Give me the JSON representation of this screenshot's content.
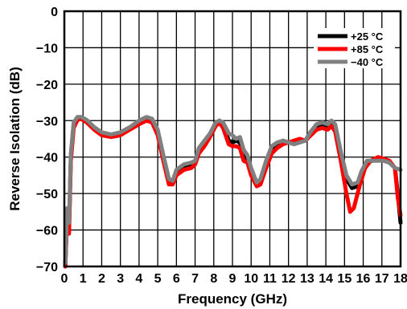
{
  "chart_data": {
    "type": "line",
    "title": "",
    "xlabel": "Frequency (GHz)",
    "ylabel": "Reverse Isolation (dB)",
    "xlim": [
      0,
      18
    ],
    "ylim": [
      -70,
      0
    ],
    "xticks": [
      0,
      1,
      2,
      3,
      4,
      5,
      6,
      7,
      8,
      9,
      10,
      11,
      12,
      13,
      14,
      15,
      16,
      17,
      18
    ],
    "yticks": [
      0,
      -10,
      -20,
      -30,
      -40,
      -50,
      -60,
      -70
    ],
    "grid": true,
    "legend_position": "top-right",
    "series": [
      {
        "name": "+25 °C",
        "color": "#000000",
        "points": [
          [
            0.05,
            -70
          ],
          [
            0.15,
            -55
          ],
          [
            0.25,
            -60
          ],
          [
            0.35,
            -40
          ],
          [
            0.5,
            -31
          ],
          [
            0.7,
            -29.5
          ],
          [
            0.9,
            -29.2
          ],
          [
            1.2,
            -30
          ],
          [
            1.6,
            -32
          ],
          [
            2,
            -33.5
          ],
          [
            2.5,
            -34
          ],
          [
            3,
            -33.5
          ],
          [
            3.5,
            -32
          ],
          [
            4,
            -30.5
          ],
          [
            4.4,
            -29.5
          ],
          [
            4.7,
            -30
          ],
          [
            5,
            -33
          ],
          [
            5.3,
            -40
          ],
          [
            5.6,
            -46.5
          ],
          [
            5.8,
            -47
          ],
          [
            6,
            -44
          ],
          [
            6.4,
            -42.5
          ],
          [
            6.8,
            -42
          ],
          [
            7,
            -41.5
          ],
          [
            7.2,
            -38
          ],
          [
            7.5,
            -36
          ],
          [
            7.8,
            -34
          ],
          [
            8.1,
            -31
          ],
          [
            8.3,
            -30
          ],
          [
            8.5,
            -31
          ],
          [
            8.8,
            -35.5
          ],
          [
            9,
            -36
          ],
          [
            9.2,
            -35.5
          ],
          [
            9.4,
            -36
          ],
          [
            9.6,
            -40
          ],
          [
            9.8,
            -40.5
          ],
          [
            10,
            -44
          ],
          [
            10.3,
            -47.5
          ],
          [
            10.5,
            -47
          ],
          [
            10.8,
            -42
          ],
          [
            11.1,
            -38
          ],
          [
            11.4,
            -37
          ],
          [
            11.7,
            -35.5
          ],
          [
            12,
            -36
          ],
          [
            12.3,
            -36
          ],
          [
            12.6,
            -35.5
          ],
          [
            12.9,
            -35.5
          ],
          [
            13.2,
            -33
          ],
          [
            13.5,
            -31.5
          ],
          [
            13.8,
            -31
          ],
          [
            14.1,
            -32
          ],
          [
            14.3,
            -30.5
          ],
          [
            14.5,
            -32
          ],
          [
            14.8,
            -40
          ],
          [
            15.1,
            -46
          ],
          [
            15.4,
            -48.5
          ],
          [
            15.7,
            -48
          ],
          [
            15.9,
            -45
          ],
          [
            16.2,
            -41.5
          ],
          [
            16.5,
            -41
          ],
          [
            16.8,
            -40.5
          ],
          [
            17.1,
            -41
          ],
          [
            17.4,
            -41.5
          ],
          [
            17.7,
            -43
          ],
          [
            17.85,
            -50
          ],
          [
            18,
            -58
          ]
        ]
      },
      {
        "name": "+85 °C",
        "color": "#ff0000",
        "points": [
          [
            0.05,
            -70
          ],
          [
            0.15,
            -56
          ],
          [
            0.25,
            -61
          ],
          [
            0.35,
            -41
          ],
          [
            0.5,
            -32
          ],
          [
            0.7,
            -29.8
          ],
          [
            0.9,
            -29.5
          ],
          [
            1.2,
            -30.5
          ],
          [
            1.6,
            -32.5
          ],
          [
            2,
            -34
          ],
          [
            2.5,
            -34.5
          ],
          [
            3,
            -34
          ],
          [
            3.5,
            -32.5
          ],
          [
            4,
            -31
          ],
          [
            4.4,
            -30
          ],
          [
            4.7,
            -30.5
          ],
          [
            5,
            -34
          ],
          [
            5.3,
            -41
          ],
          [
            5.6,
            -47.5
          ],
          [
            5.8,
            -47.5
          ],
          [
            6,
            -45
          ],
          [
            6.4,
            -43.5
          ],
          [
            6.8,
            -43
          ],
          [
            7,
            -42
          ],
          [
            7.2,
            -39
          ],
          [
            7.5,
            -37
          ],
          [
            7.8,
            -34.5
          ],
          [
            8.1,
            -31.5
          ],
          [
            8.3,
            -30.5
          ],
          [
            8.5,
            -32
          ],
          [
            8.8,
            -36.5
          ],
          [
            9,
            -37
          ],
          [
            9.2,
            -37
          ],
          [
            9.4,
            -37.5
          ],
          [
            9.6,
            -41
          ],
          [
            9.8,
            -41.5
          ],
          [
            10,
            -45
          ],
          [
            10.3,
            -48
          ],
          [
            10.5,
            -47.5
          ],
          [
            10.8,
            -43
          ],
          [
            11.1,
            -39
          ],
          [
            11.4,
            -37.5
          ],
          [
            11.7,
            -36.5
          ],
          [
            12,
            -36
          ],
          [
            12.3,
            -35.5
          ],
          [
            12.6,
            -35
          ],
          [
            12.9,
            -35.5
          ],
          [
            13.2,
            -34
          ],
          [
            13.5,
            -32.5
          ],
          [
            13.8,
            -32
          ],
          [
            14.1,
            -32.5
          ],
          [
            14.3,
            -31.5
          ],
          [
            14.5,
            -33
          ],
          [
            14.8,
            -41
          ],
          [
            15.1,
            -50
          ],
          [
            15.3,
            -55
          ],
          [
            15.5,
            -54
          ],
          [
            15.8,
            -48
          ],
          [
            16.1,
            -43
          ],
          [
            16.4,
            -41
          ],
          [
            16.8,
            -40
          ],
          [
            17.1,
            -40.5
          ],
          [
            17.4,
            -41
          ],
          [
            17.7,
            -43
          ],
          [
            17.85,
            -51
          ],
          [
            18,
            -56
          ]
        ]
      },
      {
        "name": "−40 °C",
        "color": "#808080",
        "points": [
          [
            0.05,
            -69
          ],
          [
            0.15,
            -54
          ],
          [
            0.25,
            -58
          ],
          [
            0.35,
            -39
          ],
          [
            0.5,
            -30.5
          ],
          [
            0.7,
            -29
          ],
          [
            0.9,
            -29
          ],
          [
            1.2,
            -29.8
          ],
          [
            1.6,
            -31.8
          ],
          [
            2,
            -33.2
          ],
          [
            2.5,
            -33.8
          ],
          [
            3,
            -33.2
          ],
          [
            3.5,
            -31.8
          ],
          [
            4,
            -30
          ],
          [
            4.4,
            -29
          ],
          [
            4.7,
            -29.5
          ],
          [
            5,
            -32.5
          ],
          [
            5.3,
            -39.5
          ],
          [
            5.6,
            -46
          ],
          [
            5.8,
            -46.5
          ],
          [
            6,
            -43.5
          ],
          [
            6.4,
            -42
          ],
          [
            6.8,
            -41.5
          ],
          [
            7,
            -41
          ],
          [
            7.2,
            -37.5
          ],
          [
            7.5,
            -35.5
          ],
          [
            7.8,
            -33.5
          ],
          [
            8.1,
            -30.5
          ],
          [
            8.3,
            -30
          ],
          [
            8.5,
            -30.5
          ],
          [
            8.8,
            -33.5
          ],
          [
            9,
            -34
          ],
          [
            9.2,
            -35
          ],
          [
            9.4,
            -34.5
          ],
          [
            9.6,
            -38
          ],
          [
            9.8,
            -39.5
          ],
          [
            10,
            -43
          ],
          [
            10.3,
            -47
          ],
          [
            10.5,
            -46
          ],
          [
            10.8,
            -41
          ],
          [
            11.1,
            -37
          ],
          [
            11.4,
            -36
          ],
          [
            11.7,
            -35.5
          ],
          [
            12,
            -36
          ],
          [
            12.3,
            -36.5
          ],
          [
            12.6,
            -36
          ],
          [
            12.9,
            -35.5
          ],
          [
            13.2,
            -33
          ],
          [
            13.5,
            -31
          ],
          [
            13.8,
            -30.5
          ],
          [
            14.1,
            -31
          ],
          [
            14.3,
            -30
          ],
          [
            14.5,
            -31
          ],
          [
            14.8,
            -38.5
          ],
          [
            15.1,
            -45
          ],
          [
            15.4,
            -47.5
          ],
          [
            15.7,
            -47
          ],
          [
            15.9,
            -44
          ],
          [
            16.2,
            -41
          ],
          [
            16.5,
            -41
          ],
          [
            16.8,
            -41
          ],
          [
            17.1,
            -41
          ],
          [
            17.4,
            -41.5
          ],
          [
            17.7,
            -43
          ],
          [
            18,
            -43.5
          ]
        ]
      }
    ]
  }
}
